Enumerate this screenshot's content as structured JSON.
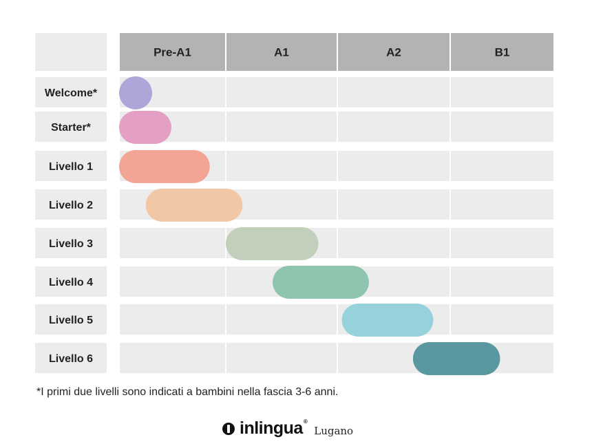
{
  "chart_data": {
    "type": "gantt",
    "columns": [
      "Pre-A1",
      "A1",
      "A2",
      "B1"
    ],
    "rows": [
      {
        "label": "Welcome*",
        "start": 0.0,
        "end": 0.24,
        "color": "#ada6d9"
      },
      {
        "label": "Starter*",
        "start": 0.0,
        "end": 0.49,
        "color": "#e3a0c4"
      },
      {
        "label": "Livello 1",
        "start": 0.0,
        "end": 0.85,
        "color": "#f2a594"
      },
      {
        "label": "Livello 2",
        "start": 0.25,
        "end": 1.15,
        "color": "#f2c7a6"
      },
      {
        "label": "Livello 3",
        "start": 1.0,
        "end": 1.83,
        "color": "#c1cfbb"
      },
      {
        "label": "Livello 4",
        "start": 1.42,
        "end": 2.28,
        "color": "#8fc4ae"
      },
      {
        "label": "Livello 5",
        "start": 2.04,
        "end": 2.85,
        "color": "#96d1dc"
      },
      {
        "label": "Livello 6",
        "start": 2.67,
        "end": 3.48,
        "color": "#5a98a0"
      }
    ]
  },
  "footnote": "*I primi due livelli sono indicati a bambini nella fascia 3-6 anni.",
  "brand": {
    "icon": "inlingua-logo-icon",
    "name": "inlingua",
    "reg": "®",
    "city": "Lugano"
  },
  "colors": {
    "header_bg": "#b3b3b3",
    "cell_bg": "#ececec"
  }
}
